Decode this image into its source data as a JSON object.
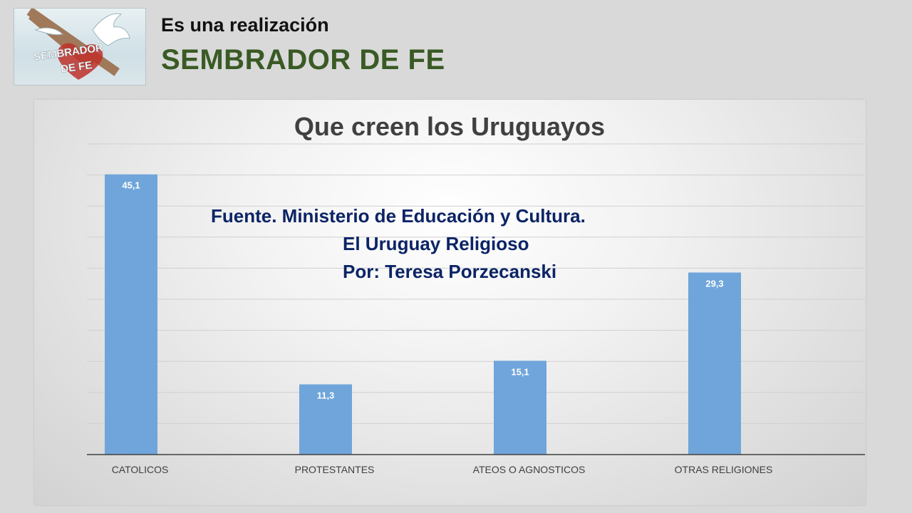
{
  "header": {
    "subtitle": "Es una realización",
    "brand": "SEMBRADOR DE FE"
  },
  "logo": {
    "line1": "SEMBRADOR",
    "line2": "DE FE",
    "icons": [
      "cross-icon",
      "dove-icon",
      "heart-icon"
    ],
    "colors": {
      "cross": "#a0785a",
      "heart": "#c0302a",
      "dove": "#ffffff"
    }
  },
  "note": {
    "line1": "Fuente. Ministerio de Educación  y Cultura.",
    "line2": "El Uruguay Religioso",
    "line3": "Por: Teresa Porzecanski"
  },
  "chart_data": {
    "type": "bar",
    "title": "Que creen los Uruguayos",
    "categories": [
      "CATOLICOS",
      "PROTESTANTES",
      "ATEOS O AGNOSTICOS",
      "OTRAS RELIGIONES"
    ],
    "values": [
      45.1,
      11.3,
      15.1,
      29.3
    ],
    "value_labels": [
      "45,1",
      "11,3",
      "15,1",
      "29,3"
    ],
    "ylim": [
      0,
      50
    ],
    "grid": true,
    "legend": "none",
    "bar_color": "#6fa5da",
    "xlabel": "",
    "ylabel": ""
  }
}
